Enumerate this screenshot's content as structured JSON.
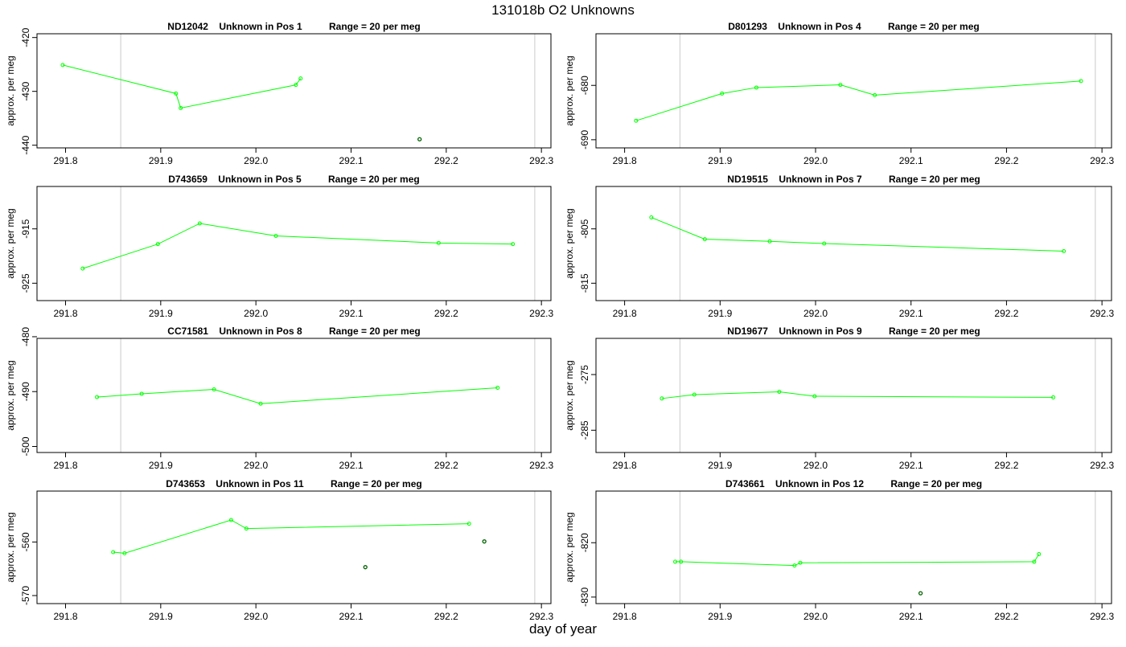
{
  "page": {
    "title": "131018b  O2 Unknowns",
    "xlabel": "day of year"
  },
  "colors": {
    "line": "#00ff00",
    "flagged_point": "#006400",
    "vline": "#d3d3d3",
    "axis": "#000000"
  },
  "chart_data": [
    {
      "type": "line",
      "title": "ND12042    Unknown in Pos 1          Range = 20 per meg",
      "ylabel": "approx. per meg",
      "xlim": [
        291.77,
        292.31
      ],
      "ylim": [
        -440.5,
        -419.3
      ],
      "xticks": [
        291.8,
        291.9,
        292.0,
        292.1,
        292.2,
        292.3
      ],
      "yticks": [
        -420,
        -430,
        -440
      ],
      "vlines": [
        291.858,
        292.293
      ],
      "series": [
        {
          "x": [
            291.797,
            291.916,
            291.921,
            292.042,
            292.047
          ],
          "y": [
            -425.1,
            -430.4,
            -433.1,
            -428.8,
            -427.6
          ]
        }
      ],
      "flagged": [
        {
          "x": 292.172,
          "y": -438.9
        }
      ]
    },
    {
      "type": "line",
      "title": "D801293    Unknown in Pos 4          Range = 20 per meg",
      "ylabel": "approx. per meg",
      "xlim": [
        291.77,
        292.31
      ],
      "ylim": [
        -691.5,
        -670.5
      ],
      "xticks": [
        291.8,
        291.9,
        292.0,
        292.1,
        292.2,
        292.3
      ],
      "yticks": [
        -680,
        -690
      ],
      "vlines": [
        291.858,
        292.293
      ],
      "series": [
        {
          "x": [
            291.812,
            291.902,
            291.938,
            292.026,
            292.062,
            292.278
          ],
          "y": [
            -686.5,
            -681.5,
            -680.4,
            -679.9,
            -681.8,
            -679.2
          ]
        }
      ],
      "flagged": []
    },
    {
      "type": "line",
      "title": "D743659    Unknown in Pos 5          Range = 20 per meg",
      "ylabel": "approx. per meg",
      "xlim": [
        291.77,
        292.31
      ],
      "ylim": [
        -928.2,
        -907.2
      ],
      "xticks": [
        291.8,
        291.9,
        292.0,
        292.1,
        292.2,
        292.3
      ],
      "yticks": [
        -915,
        -925
      ],
      "vlines": [
        291.858,
        292.293
      ],
      "series": [
        {
          "x": [
            291.818,
            291.897,
            291.941,
            292.021,
            292.192,
            292.27
          ],
          "y": [
            -922.3,
            -917.8,
            -914.0,
            -916.3,
            -917.6,
            -917.8
          ]
        }
      ],
      "flagged": []
    },
    {
      "type": "line",
      "title": "ND19515    Unknown in Pos 7          Range = 20 per meg",
      "ylabel": "approx. per meg",
      "xlim": [
        291.77,
        292.31
      ],
      "ylim": [
        -818.2,
        -797.2
      ],
      "xticks": [
        291.8,
        291.9,
        292.0,
        292.1,
        292.2,
        292.3
      ],
      "yticks": [
        -805,
        -815
      ],
      "vlines": [
        291.858,
        292.293
      ],
      "series": [
        {
          "x": [
            291.828,
            291.884,
            291.952,
            292.009,
            292.26
          ],
          "y": [
            -802.9,
            -806.9,
            -807.3,
            -807.7,
            -809.1
          ]
        }
      ],
      "flagged": []
    },
    {
      "type": "line",
      "title": "CC71581    Unknown in Pos 8          Range = 20 per meg",
      "ylabel": "approx. per meg",
      "xlim": [
        291.77,
        292.31
      ],
      "ylim": [
        -501.1,
        -480.3
      ],
      "xticks": [
        291.8,
        291.9,
        292.0,
        292.1,
        292.2,
        292.3
      ],
      "yticks": [
        -480,
        -490,
        -500
      ],
      "vlines": [
        291.858,
        292.293
      ],
      "series": [
        {
          "x": [
            291.833,
            291.88,
            291.956,
            292.005,
            292.254
          ],
          "y": [
            -491.0,
            -490.4,
            -489.6,
            -492.2,
            -489.3
          ]
        }
      ],
      "flagged": []
    },
    {
      "type": "line",
      "title": "ND19677    Unknown in Pos 9          Range = 20 per meg",
      "ylabel": "approx. per meg",
      "xlim": [
        291.77,
        292.31
      ],
      "ylim": [
        -289.0,
        -268.5
      ],
      "xticks": [
        291.8,
        291.9,
        292.0,
        292.1,
        292.2,
        292.3
      ],
      "yticks": [
        -275,
        -285
      ],
      "vlines": [
        291.858,
        292.293
      ],
      "series": [
        {
          "x": [
            291.839,
            291.873,
            291.962,
            291.999,
            292.249
          ],
          "y": [
            -279.3,
            -278.6,
            -278.1,
            -278.9,
            -279.1
          ]
        }
      ],
      "flagged": []
    },
    {
      "type": "line",
      "title": "D743653    Unknown in Pos 11          Range = 20 per meg",
      "ylabel": "approx. per meg",
      "xlim": [
        291.77,
        292.31
      ],
      "ylim": [
        -571.5,
        -550.5
      ],
      "xticks": [
        291.8,
        291.9,
        292.0,
        292.1,
        292.2,
        292.3
      ],
      "yticks": [
        -560,
        -570
      ],
      "vlines": [
        291.858,
        292.293
      ],
      "series": [
        {
          "x": [
            291.85,
            291.862,
            291.974,
            291.99,
            292.224
          ],
          "y": [
            -561.9,
            -562.1,
            -555.9,
            -557.5,
            -556.6
          ]
        }
      ],
      "flagged": [
        {
          "x": 292.115,
          "y": -564.7
        },
        {
          "x": 292.24,
          "y": -559.9
        }
      ]
    },
    {
      "type": "line",
      "title": "D743661    Unknown in Pos 12          Range = 20 per meg",
      "ylabel": "approx. per meg",
      "xlim": [
        291.77,
        292.31
      ],
      "ylim": [
        -831.2,
        -810.5
      ],
      "xticks": [
        291.8,
        291.9,
        292.0,
        292.1,
        292.2,
        292.3
      ],
      "yticks": [
        -820,
        -830
      ],
      "vlines": [
        291.858,
        292.293
      ],
      "series": [
        {
          "x": [
            291.853,
            291.859,
            291.978,
            291.984,
            292.229,
            292.234
          ],
          "y": [
            -823.5,
            -823.5,
            -824.2,
            -823.7,
            -823.5,
            -822.1
          ]
        }
      ],
      "flagged": [
        {
          "x": 292.11,
          "y": -829.3
        }
      ]
    }
  ]
}
